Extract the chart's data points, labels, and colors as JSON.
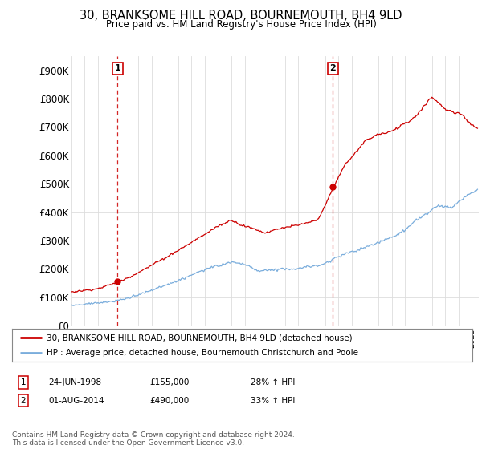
{
  "title": "30, BRANKSOME HILL ROAD, BOURNEMOUTH, BH4 9LD",
  "subtitle": "Price paid vs. HM Land Registry's House Price Index (HPI)",
  "legend_line1": "30, BRANKSOME HILL ROAD, BOURNEMOUTH, BH4 9LD (detached house)",
  "legend_line2": "HPI: Average price, detached house, Bournemouth Christchurch and Poole",
  "annotation1_date": "24-JUN-1998",
  "annotation1_price": "£155,000",
  "annotation1_hpi": "28% ↑ HPI",
  "annotation2_date": "01-AUG-2014",
  "annotation2_price": "£490,000",
  "annotation2_hpi": "33% ↑ HPI",
  "footer": "Contains HM Land Registry data © Crown copyright and database right 2024.\nThis data is licensed under the Open Government Licence v3.0.",
  "sale_color": "#cc0000",
  "hpi_color": "#7aaddc",
  "ylim": [
    0,
    950000
  ],
  "yticks": [
    0,
    100000,
    200000,
    300000,
    400000,
    500000,
    600000,
    700000,
    800000,
    900000
  ],
  "ytick_labels": [
    "£0",
    "£100K",
    "£200K",
    "£300K",
    "£400K",
    "£500K",
    "£600K",
    "£700K",
    "£800K",
    "£900K"
  ],
  "sale1_x": 1998.47,
  "sale1_y": 155000,
  "sale2_x": 2014.58,
  "sale2_y": 490000,
  "xmin": 1995.0,
  "xmax": 2025.5,
  "background_color": "#ffffff",
  "grid_color": "#dddddd"
}
